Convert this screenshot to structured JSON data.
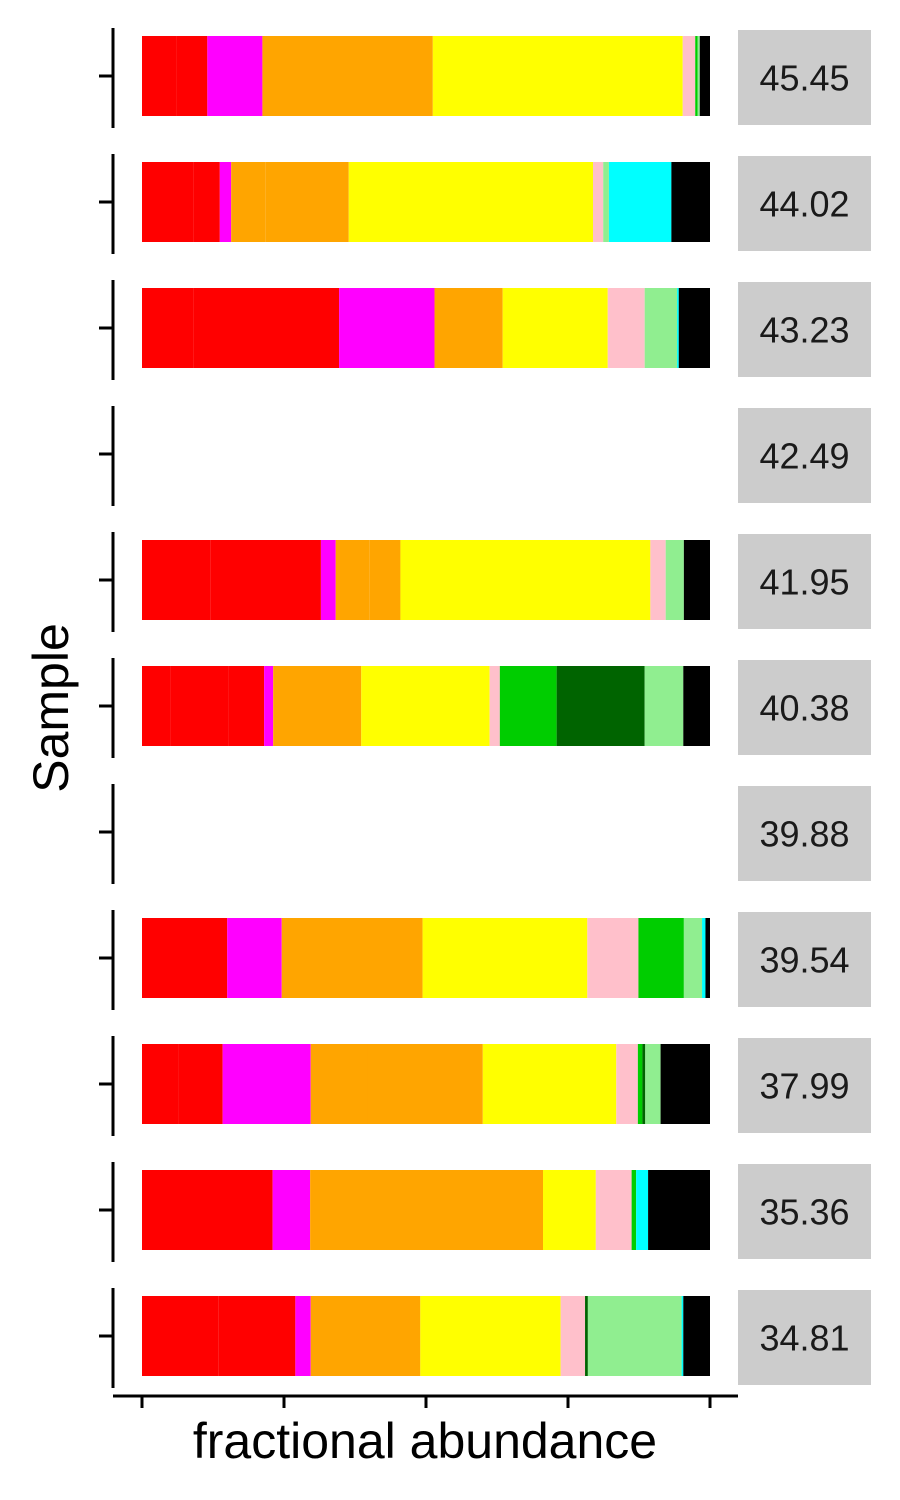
{
  "chart_data": {
    "type": "bar",
    "orientation": "horizontal",
    "stacked": true,
    "faceted": true,
    "xlabel": "fractional abundance",
    "ylabel": "Sample",
    "xlim": [
      0,
      1
    ],
    "x_tick_labels": [],
    "grid": false,
    "legend": "none",
    "facets": [
      {
        "label": "45.45",
        "segments": [
          {
            "color": "#FF0000",
            "value": 0.06
          },
          {
            "color": "#FF0000",
            "value": 0.055
          },
          {
            "color": "#FF00FF",
            "value": 0.097
          },
          {
            "color": "#FFA500",
            "value": 0.3
          },
          {
            "color": "#FFFF00",
            "value": 0.44
          },
          {
            "color": "#FFC0CB",
            "value": 0.022
          },
          {
            "color": "#00CD00",
            "value": 0.004
          },
          {
            "color": "#90EE90",
            "value": 0.004
          },
          {
            "color": "#000000",
            "value": 0.018
          }
        ]
      },
      {
        "label": "44.02",
        "segments": [
          {
            "color": "#FF0000",
            "value": 0.09
          },
          {
            "color": "#FF0000",
            "value": 0.047
          },
          {
            "color": "#FF00FF",
            "value": 0.02
          },
          {
            "color": "#FFA500",
            "value": 0.06
          },
          {
            "color": "#FFA500",
            "value": 0.147
          },
          {
            "color": "#FFFF00",
            "value": 0.43
          },
          {
            "color": "#FFC0CB",
            "value": 0.018
          },
          {
            "color": "#90EE90",
            "value": 0.01
          },
          {
            "color": "#00FFFF",
            "value": 0.11
          },
          {
            "color": "#000000",
            "value": 0.068
          }
        ]
      },
      {
        "label": "43.23",
        "segments": [
          {
            "color": "#FF0000",
            "value": 0.09
          },
          {
            "color": "#FF0000",
            "value": 0.257
          },
          {
            "color": "#FF00FF",
            "value": 0.168
          },
          {
            "color": "#FFA500",
            "value": 0.12
          },
          {
            "color": "#FFFF00",
            "value": 0.185
          },
          {
            "color": "#FFC0CB",
            "value": 0.065
          },
          {
            "color": "#90EE90",
            "value": 0.057
          },
          {
            "color": "#00FFFF",
            "value": 0.003
          },
          {
            "color": "#000000",
            "value": 0.055
          }
        ]
      },
      {
        "label": "42.49",
        "segments": []
      },
      {
        "label": "41.95",
        "segments": [
          {
            "color": "#FF0000",
            "value": 0.12
          },
          {
            "color": "#FF0000",
            "value": 0.195
          },
          {
            "color": "#FF00FF",
            "value": 0.026
          },
          {
            "color": "#FFA500",
            "value": 0.06
          },
          {
            "color": "#FFA500",
            "value": 0.054
          },
          {
            "color": "#FFFF00",
            "value": 0.44
          },
          {
            "color": "#FFC0CB",
            "value": 0.027
          },
          {
            "color": "#90EE90",
            "value": 0.032
          },
          {
            "color": "#000000",
            "value": 0.046
          }
        ]
      },
      {
        "label": "40.38",
        "segments": [
          {
            "color": "#FF0000",
            "value": 0.05
          },
          {
            "color": "#FF0000",
            "value": 0.103
          },
          {
            "color": "#FF0000",
            "value": 0.062
          },
          {
            "color": "#FF00FF",
            "value": 0.016
          },
          {
            "color": "#FFA500",
            "value": 0.155
          },
          {
            "color": "#FFFF00",
            "value": 0.226
          },
          {
            "color": "#FFC0CB",
            "value": 0.018
          },
          {
            "color": "#00CD00",
            "value": 0.1
          },
          {
            "color": "#006400",
            "value": 0.155
          },
          {
            "color": "#90EE90",
            "value": 0.068
          },
          {
            "color": "#000000",
            "value": 0.047
          }
        ]
      },
      {
        "label": "39.88",
        "segments": []
      },
      {
        "label": "39.54",
        "segments": [
          {
            "color": "#FF0000",
            "value": 0.15
          },
          {
            "color": "#FF00FF",
            "value": 0.096
          },
          {
            "color": "#FFA500",
            "value": 0.248
          },
          {
            "color": "#FFFF00",
            "value": 0.29
          },
          {
            "color": "#FFC0CB",
            "value": 0.09
          },
          {
            "color": "#00CD00",
            "value": 0.08
          },
          {
            "color": "#90EE90",
            "value": 0.032
          },
          {
            "color": "#00FFFF",
            "value": 0.006
          },
          {
            "color": "#000000",
            "value": 0.008
          }
        ]
      },
      {
        "label": "37.99",
        "segments": [
          {
            "color": "#FF0000",
            "value": 0.065
          },
          {
            "color": "#FF0000",
            "value": 0.077
          },
          {
            "color": "#FF00FF",
            "value": 0.155
          },
          {
            "color": "#FFA500",
            "value": 0.1
          },
          {
            "color": "#FFA500",
            "value": 0.203
          },
          {
            "color": "#FFFF00",
            "value": 0.235
          },
          {
            "color": "#FFC0CB",
            "value": 0.038
          },
          {
            "color": "#00CD00",
            "value": 0.008
          },
          {
            "color": "#006400",
            "value": 0.005
          },
          {
            "color": "#90EE90",
            "value": 0.027
          },
          {
            "color": "#000000",
            "value": 0.087
          }
        ]
      },
      {
        "label": "35.36",
        "segments": [
          {
            "color": "#FF0000",
            "value": 0.23
          },
          {
            "color": "#FF00FF",
            "value": 0.066
          },
          {
            "color": "#FFA500",
            "value": 0.41
          },
          {
            "color": "#FFFF00",
            "value": 0.093
          },
          {
            "color": "#FFC0CB",
            "value": 0.063
          },
          {
            "color": "#00CD00",
            "value": 0.008
          },
          {
            "color": "#00FFFF",
            "value": 0.021
          },
          {
            "color": "#000000",
            "value": 0.109
          }
        ]
      },
      {
        "label": "34.81",
        "segments": [
          {
            "color": "#FF0000",
            "value": 0.135
          },
          {
            "color": "#FF0000",
            "value": 0.135
          },
          {
            "color": "#FF00FF",
            "value": 0.027
          },
          {
            "color": "#FFA500",
            "value": 0.193
          },
          {
            "color": "#FFFF00",
            "value": 0.247
          },
          {
            "color": "#FFC0CB",
            "value": 0.043
          },
          {
            "color": "#006400",
            "value": 0.005
          },
          {
            "color": "#90EE90",
            "value": 0.165
          },
          {
            "color": "#00FFFF",
            "value": 0.003
          },
          {
            "color": "#000000",
            "value": 0.047
          }
        ]
      }
    ]
  }
}
